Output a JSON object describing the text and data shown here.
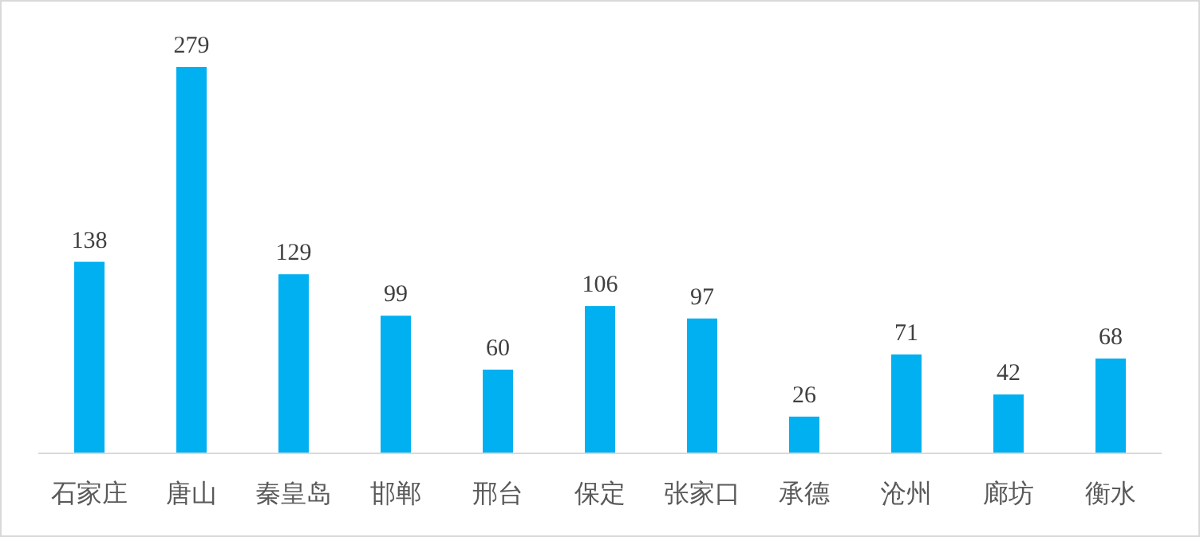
{
  "chart_data": {
    "type": "bar",
    "categories": [
      "石家庄",
      "唐山",
      "秦皇岛",
      "邯郸",
      "邢台",
      "保定",
      "张家口",
      "承德",
      "沧州",
      "廊坊",
      "衡水"
    ],
    "values": [
      138,
      279,
      129,
      99,
      60,
      106,
      97,
      26,
      71,
      42,
      68
    ],
    "color": "#00b0f0",
    "data_labels": true
  }
}
